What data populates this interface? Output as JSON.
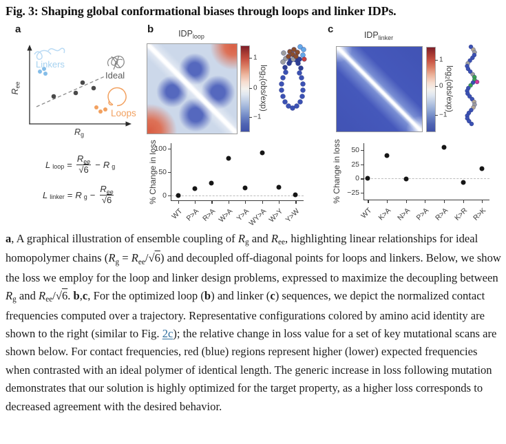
{
  "figure": {
    "title": "Fig. 3: Shaping global conformational biases through loops and linker IDPs.",
    "panel_letters": {
      "a": "a",
      "b": "b",
      "c": "c"
    }
  },
  "panel_a": {
    "ylabel_base": "R",
    "ylabel_sub": "ee",
    "xlabel_base": "R",
    "xlabel_sub": "g",
    "label_linkers": "Linkers",
    "label_ideal": "Ideal",
    "label_loops": "Loops",
    "colors": {
      "linkers": "#85bde8",
      "ideal": "#4a4a4a",
      "loops": "#f2a160",
      "trend": "#8a8a8a"
    }
  },
  "equations": {
    "loop": {
      "lhs": "L",
      "lhs_sub": "loop",
      "eq": "=",
      "num": "R",
      "num_sub": "ee",
      "den_rad": "√",
      "den_num": "6",
      "op": "−",
      "rhs": "R",
      "rhs_sub": "g"
    },
    "linker": {
      "lhs": "L",
      "lhs_sub": "linker",
      "eq": "=",
      "lead": "R",
      "lead_sub": "g",
      "op": "−",
      "num": "R",
      "num_sub": "ee",
      "den_rad": "√",
      "den_num": "6"
    }
  },
  "panel_b": {
    "title_base": "IDP",
    "title_sub": "loop",
    "colorbar": {
      "tick_top": "1",
      "tick_mid": "0",
      "tick_bot": "−1",
      "label_pre": "log",
      "label_sub": "2",
      "label_post": "(obs/exp)"
    }
  },
  "panel_c": {
    "title_base": "IDP",
    "title_sub": "linker",
    "colorbar": {
      "tick_top": "1",
      "tick_mid": "0",
      "tick_bot": "−1",
      "label_pre": "log",
      "label_sub": "2",
      "label_post": "(obs/exp)"
    }
  },
  "chart_data": [
    {
      "id": "panel_a_schematic",
      "type": "scatter",
      "title": "Ensemble coupling of Rg and Ree (schematic)",
      "xlabel": "Rg",
      "ylabel": "Ree",
      "trendline": "dashed ideal-homopolymer line, positive slope",
      "series": [
        {
          "name": "Linkers",
          "color": "#85bde8",
          "position": "above line, upper left"
        },
        {
          "name": "Ideal",
          "color": "#4a4a4a",
          "position": "on dashed line"
        },
        {
          "name": "Loops",
          "color": "#f2a160",
          "position": "below line, lower right"
        }
      ]
    },
    {
      "render_id": "b",
      "type": "scatter",
      "title": "IDP_loop mutational scan",
      "ylabel": "% Change in loss",
      "categories": [
        "WT",
        "P>A",
        "R>A",
        "W>A",
        "Y>A",
        "WY>A",
        "W>Y",
        "Y>W"
      ],
      "values": [
        0,
        14,
        26,
        80,
        16,
        91,
        18,
        2
      ],
      "yticks": [
        0,
        50,
        100
      ],
      "ylim": [
        -12,
        112
      ],
      "x_start": 0.05,
      "x_end": 0.935,
      "zero_line": "dashed"
    },
    {
      "render_id": "c",
      "type": "scatter",
      "title": "IDP_linker mutational scan",
      "ylabel": "% Change in loss",
      "categories": [
        "WT",
        "K>A",
        "N>A",
        "P>A",
        "R>A",
        "K>R",
        "R>K"
      ],
      "values": [
        0,
        40,
        -1,
        null,
        55,
        -7,
        17
      ],
      "yticks": [
        -25,
        0,
        25,
        50
      ],
      "ylim": [
        -38,
        62
      ],
      "x_start": 0.03,
      "x_end": 0.935,
      "zero_line": "dashed"
    },
    {
      "id": "heatmap_b",
      "type": "heatmap",
      "title": "IDP_loop",
      "colorbar_label": "log2(obs/exp)",
      "colorbar_ticks": [
        1,
        0,
        -1
      ],
      "description": "Contact map: white diagonal, red enriched corners (top-right, bottom-left), four dark-blue depleted lobes flanking the diagonal"
    },
    {
      "id": "heatmap_c",
      "type": "heatmap",
      "title": "IDP_linker",
      "colorbar_label": "log2(obs/exp)",
      "colorbar_ticks": [
        1,
        0,
        -1
      ],
      "description": "Contact map: uniformly blue (depleted) away from thin white diagonal"
    }
  ],
  "caption": {
    "segments": [
      {
        "t": "a",
        "s": "b"
      },
      {
        "t": ", A graphical illustration of ensemble coupling of "
      },
      {
        "t": "R",
        "s": "i"
      },
      {
        "t": "g",
        "s": "sb"
      },
      {
        "t": " and "
      },
      {
        "t": "R",
        "s": "i"
      },
      {
        "t": "ee",
        "s": "sb"
      },
      {
        "t": ", highlighting linear relationships for ideal homopolymer chains ("
      },
      {
        "t": "R",
        "s": "i"
      },
      {
        "t": "g",
        "s": "sb"
      },
      {
        "t": " = "
      },
      {
        "t": "R",
        "s": "i"
      },
      {
        "t": "ee",
        "s": "sb"
      },
      {
        "t": "/"
      },
      {
        "t": "√"
      },
      {
        "t": "6",
        "s": "ov"
      },
      {
        "t": ") and decoupled off-diagonal points for loops and linkers. Below, we show the loss we employ for the loop and linker design problems, expressed to maximize the decoupling between "
      },
      {
        "t": "R",
        "s": "i"
      },
      {
        "t": "g",
        "s": "sb"
      },
      {
        "t": " and "
      },
      {
        "t": "R",
        "s": "i"
      },
      {
        "t": "ee",
        "s": "sb"
      },
      {
        "t": "/"
      },
      {
        "t": "√"
      },
      {
        "t": "6",
        "s": "ov"
      },
      {
        "t": ". "
      },
      {
        "t": "b",
        "s": "b"
      },
      {
        "t": ","
      },
      {
        "t": "c",
        "s": "b"
      },
      {
        "t": ", For the optimized loop ("
      },
      {
        "t": "b",
        "s": "b"
      },
      {
        "t": ") and linker ("
      },
      {
        "t": "c",
        "s": "b"
      },
      {
        "t": ") sequences, we depict the normalized contact frequencies computed over a trajectory. Representative configurations colored by amino acid identity are shown to the right (similar to Fig. "
      },
      {
        "t": "2c",
        "s": "lk"
      },
      {
        "t": "); the relative change in loss value for a set of key mutational scans are shown below. For contact frequencies, red (blue) regions represent higher (lower) expected frequencies when contrasted with an ideal polymer of identical length. The generic increase in loss following mutation demonstrates that our solution is highly optimized for the target property, as a higher loss corresponds to decreased agreement with the desired behavior."
      }
    ]
  }
}
